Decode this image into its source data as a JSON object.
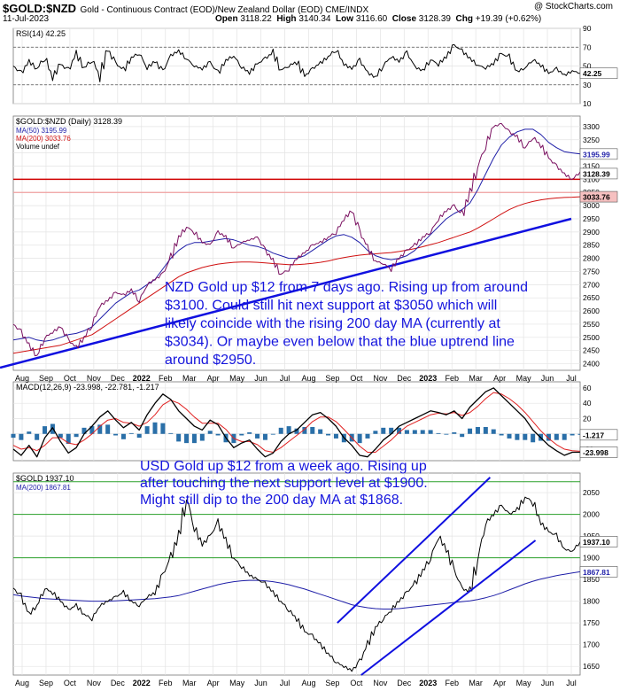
{
  "header": {
    "symbol": "$GOLD:$NZD",
    "description": "Gold - Continuous Contract (EOD)/New Zealand Dollar (EOD)  CME/INDX",
    "date": "11-Jul-2023",
    "copyright": "@ StockCharts.com",
    "ohlc": {
      "open_label": "Open",
      "open": "3118.22",
      "high_label": "High",
      "high": "3140.34",
      "low_label": "Low",
      "low": "3116.60",
      "close_label": "Close",
      "close": "3128.39",
      "chg_label": "Chg",
      "chg": "+19.39 (+0.62%)"
    }
  },
  "x_axis": {
    "ticks": [
      "Aug",
      "Sep",
      "Oct",
      "Nov",
      "Dec",
      "2022",
      "Feb",
      "Mar",
      "Apr",
      "May",
      "Jun",
      "Jul",
      "Aug",
      "Sep",
      "Oct",
      "Nov",
      "Dec",
      "2023",
      "Feb",
      "Mar",
      "Apr",
      "May",
      "Jun",
      "Jul"
    ],
    "bold_ticks": [
      "2022",
      "2023"
    ]
  },
  "colors": {
    "price": "#000000",
    "ma50": "#1f1fa8",
    "ma200": "#d01010",
    "support_red": "#d00000",
    "support_light": "#f0a0a0",
    "trend": "#1010e0",
    "annotation": "#1515dd",
    "green_level": "#2aa02a",
    "macd_hist": "#2a6fa8"
  },
  "chart_data": [
    {
      "type": "line",
      "panel": "rsi",
      "legend": "RSI(14) 42.25",
      "ticks": [
        "90",
        "70",
        "50",
        "30",
        "10"
      ],
      "ylim": [
        10,
        90
      ],
      "overbought": 70,
      "oversold": 30,
      "last_label": "42.25",
      "series": [
        {
          "name": "RSI(14)",
          "values": [
            50,
            42,
            55,
            47,
            60,
            38,
            52,
            45,
            63,
            48,
            57,
            40,
            67,
            53,
            45,
            59,
            64,
            48,
            55,
            44,
            61,
            66,
            58,
            50,
            47,
            54,
            42,
            56,
            61,
            49,
            43,
            52,
            58,
            64,
            46,
            50,
            55,
            39,
            47,
            53,
            60,
            68,
            52,
            47,
            56,
            43,
            38,
            51,
            60,
            55,
            64,
            49,
            45,
            57,
            52,
            60,
            72,
            66,
            58,
            51,
            48,
            53,
            63,
            59,
            44,
            48,
            57,
            51,
            42,
            47,
            40,
            45,
            42.25
          ]
        }
      ]
    },
    {
      "type": "line",
      "panel": "price_nzd",
      "legend": "$GOLD:$NZD (Daily) 3128.39",
      "ma50_legend": "MA(50) 3195.99",
      "ma200_legend": "MA(200) 3033.76",
      "volume_legend": "Volume undef",
      "ticks": [
        "3300",
        "3250",
        "3200",
        "3150",
        "3100",
        "3050",
        "3000",
        "2950",
        "2900",
        "2850",
        "2800",
        "2750",
        "2700",
        "2650",
        "2600",
        "2550",
        "2500",
        "2450",
        "2400"
      ],
      "ylim": [
        2375,
        3340
      ],
      "last_close_label": "3128.39",
      "ma50_label": "3195.99",
      "ma200_label": "3033.76",
      "support_red": 3100,
      "support_light": 3050,
      "trendline": {
        "from": [
          0,
          2385
        ],
        "to": [
          23,
          2950
        ]
      },
      "series": [
        {
          "name": "$GOLD:$NZD",
          "values": [
            2550,
            2520,
            2470,
            2430,
            2500,
            2520,
            2540,
            2490,
            2460,
            2500,
            2550,
            2620,
            2640,
            2670,
            2660,
            2680,
            2640,
            2700,
            2720,
            2740,
            2800,
            2880,
            2920,
            2900,
            2860,
            2850,
            2900,
            2880,
            2840,
            2860,
            2870,
            2880,
            2830,
            2790,
            2740,
            2760,
            2800,
            2820,
            2850,
            2860,
            2880,
            2900,
            2950,
            2980,
            2900,
            2840,
            2790,
            2780,
            2760,
            2800,
            2830,
            2850,
            2880,
            2900,
            2950,
            2980,
            3000,
            2960,
            3050,
            3150,
            3230,
            3300,
            3310,
            3280,
            3260,
            3220,
            3260,
            3230,
            3180,
            3150,
            3120,
            3100,
            3128.39
          ]
        },
        {
          "name": "MA(50)",
          "values": [
            2490,
            2495,
            2500,
            2490,
            2485,
            2490,
            2500,
            2510,
            2515,
            2525,
            2540,
            2570,
            2600,
            2630,
            2650,
            2670,
            2680,
            2700,
            2720,
            2760,
            2800,
            2830,
            2850,
            2860,
            2860,
            2865,
            2870,
            2875,
            2870,
            2860,
            2850,
            2845,
            2835,
            2820,
            2810,
            2800,
            2800,
            2810,
            2830,
            2850,
            2870,
            2885,
            2890,
            2880,
            2860,
            2830,
            2810,
            2800,
            2795,
            2800,
            2810,
            2830,
            2860,
            2890,
            2920,
            2950,
            2970,
            2985,
            3010,
            3060,
            3120,
            3180,
            3230,
            3260,
            3280,
            3290,
            3290,
            3270,
            3240,
            3220,
            3205,
            3200,
            3195.99
          ]
        },
        {
          "name": "MA(200)",
          "values": [
            2440,
            2445,
            2450,
            2455,
            2460,
            2465,
            2470,
            2480,
            2490,
            2500,
            2510,
            2530,
            2550,
            2570,
            2590,
            2610,
            2630,
            2650,
            2670,
            2690,
            2710,
            2730,
            2745,
            2755,
            2765,
            2772,
            2778,
            2782,
            2785,
            2786,
            2786,
            2785,
            2783,
            2780,
            2778,
            2776,
            2776,
            2778,
            2781,
            2785,
            2790,
            2797,
            2803,
            2808,
            2812,
            2815,
            2817,
            2820,
            2822,
            2826,
            2831,
            2837,
            2844,
            2852,
            2860,
            2870,
            2880,
            2890,
            2900,
            2915,
            2932,
            2950,
            2968,
            2985,
            2998,
            3008,
            3016,
            3022,
            3026,
            3029,
            3031,
            3032,
            3033.76
          ]
        }
      ]
    },
    {
      "type": "line",
      "panel": "macd",
      "legend": "MACD(12,26,9) -23.998, -22.781, -1.217",
      "ticks": [
        "60",
        "40",
        "20",
        "0",
        "-20"
      ],
      "ylim": [
        -35,
        68
      ],
      "last_labels": [
        "-1.217",
        "-23.998"
      ],
      "series": [
        {
          "name": "MACD",
          "values": [
            -20,
            -28,
            -15,
            -30,
            -5,
            8,
            -10,
            -25,
            -18,
            0,
            10,
            22,
            30,
            18,
            8,
            15,
            5,
            25,
            40,
            52,
            45,
            30,
            20,
            10,
            5,
            18,
            12,
            -5,
            -18,
            -12,
            -8,
            -20,
            -30,
            -25,
            -10,
            0,
            5,
            15,
            25,
            28,
            20,
            10,
            -5,
            -15,
            -28,
            -30,
            -20,
            -8,
            0,
            10,
            15,
            20,
            25,
            30,
            28,
            25,
            30,
            20,
            35,
            45,
            55,
            60,
            50,
            40,
            30,
            20,
            5,
            -5,
            -15,
            -22,
            -28,
            -24,
            -23.998
          ]
        },
        {
          "name": "Signal",
          "values": [
            -15,
            -20,
            -18,
            -22,
            -15,
            -5,
            -5,
            -12,
            -14,
            -8,
            0,
            10,
            18,
            20,
            15,
            14,
            10,
            15,
            25,
            38,
            44,
            40,
            32,
            22,
            14,
            14,
            14,
            6,
            -6,
            -10,
            -10,
            -14,
            -22,
            -24,
            -18,
            -10,
            -2,
            6,
            16,
            22,
            22,
            16,
            6,
            -5,
            -16,
            -24,
            -24,
            -16,
            -8,
            2,
            10,
            15,
            20,
            25,
            27,
            26,
            28,
            24,
            28,
            36,
            46,
            54,
            52,
            46,
            38,
            28,
            16,
            4,
            -6,
            -14,
            -20,
            -22,
            -22.781
          ]
        }
      ]
    },
    {
      "type": "line",
      "panel": "price_usd",
      "legend": "$GOLD 1937.10",
      "ma200_legend": "MA(200) 1867.81",
      "ticks": [
        "2050",
        "2000",
        "1950",
        "1900",
        "1850",
        "1800",
        "1750",
        "1700",
        "1650"
      ],
      "ylim": [
        1630,
        2095
      ],
      "last_close_label": "1937.10",
      "ma200_label": "1867.81",
      "green_levels": [
        2075,
        2000,
        1900
      ],
      "channel": {
        "upper": {
          "from": [
            13.2,
            1750
          ],
          "to": [
            19.6,
            2085
          ]
        },
        "lower": {
          "from": [
            14.2,
            1630
          ],
          "to": [
            21.5,
            1940
          ]
        }
      },
      "series": [
        {
          "name": "$GOLD",
          "values": [
            1830,
            1810,
            1770,
            1790,
            1830,
            1820,
            1800,
            1780,
            1790,
            1770,
            1760,
            1790,
            1800,
            1810,
            1820,
            1800,
            1790,
            1810,
            1820,
            1860,
            1900,
            1950,
            2040,
            1970,
            1930,
            1950,
            1980,
            1940,
            1900,
            1880,
            1860,
            1850,
            1840,
            1820,
            1800,
            1780,
            1760,
            1730,
            1720,
            1700,
            1680,
            1660,
            1650,
            1640,
            1660,
            1700,
            1740,
            1760,
            1780,
            1800,
            1820,
            1840,
            1870,
            1900,
            1950,
            1920,
            1870,
            1830,
            1820,
            1900,
            1980,
            2000,
            2020,
            2000,
            2010,
            2040,
            2030,
            1980,
            1960,
            1950,
            1920,
            1915,
            1937.1
          ]
        },
        {
          "name": "MA(200)",
          "values": [
            1815,
            1812,
            1810,
            1808,
            1806,
            1805,
            1804,
            1803,
            1802,
            1801,
            1800,
            1800,
            1800,
            1801,
            1802,
            1803,
            1804,
            1805,
            1806,
            1808,
            1810,
            1813,
            1818,
            1823,
            1828,
            1833,
            1838,
            1842,
            1845,
            1847,
            1848,
            1848,
            1847,
            1845,
            1842,
            1838,
            1833,
            1828,
            1822,
            1816,
            1810,
            1804,
            1798,
            1792,
            1788,
            1785,
            1783,
            1782,
            1782,
            1783,
            1785,
            1787,
            1789,
            1791,
            1793,
            1795,
            1797,
            1799,
            1801,
            1804,
            1808,
            1813,
            1819,
            1826,
            1833,
            1840,
            1846,
            1851,
            1855,
            1859,
            1862,
            1865,
            1867.81
          ]
        }
      ]
    }
  ],
  "annotations": {
    "nzd": [
      "NZD Gold up $12 from 7 days ago. Rising up from around",
      "$3100. Could still hit next support at $3050 which will",
      "likely coincide with the rising 200 day MA (currently at",
      "$3034). Or maybe even below that the blue uptrend line",
      "around $2950."
    ],
    "usd": [
      "USD Gold up $12 from a week ago. Rising up",
      "after touching the next support level at $1900.",
      "Might still dip to the 200 day MA at $1868."
    ]
  }
}
